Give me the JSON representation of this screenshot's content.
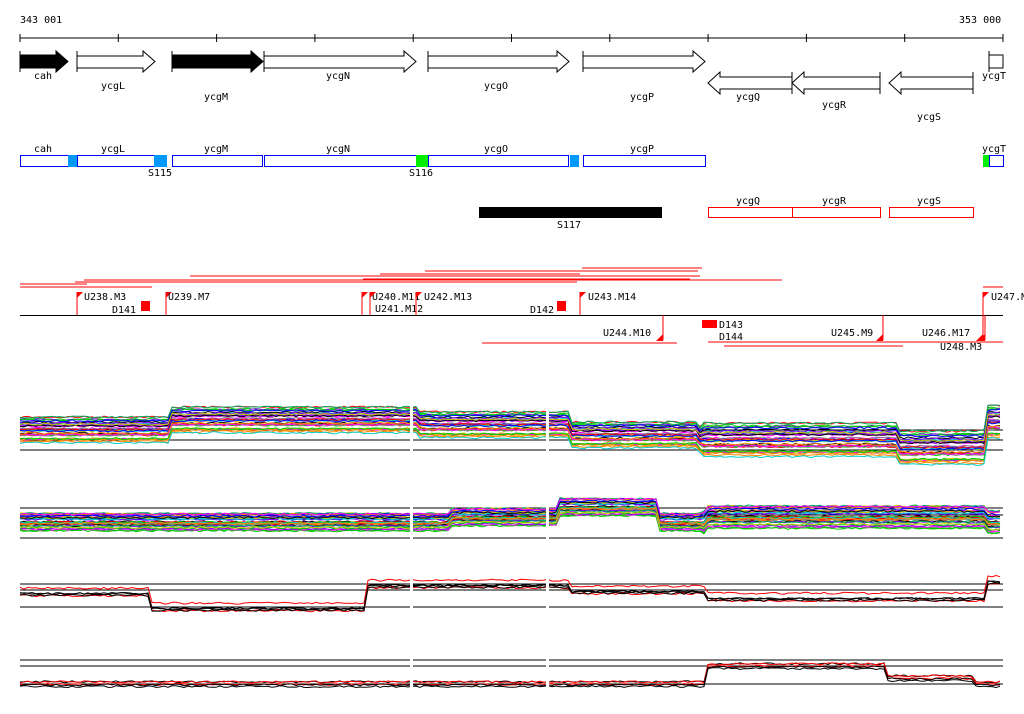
{
  "ruler": {
    "start": "343 001",
    "end": "353 000"
  },
  "genes": [
    {
      "name": "cah",
      "strand": "+",
      "filled": true
    },
    {
      "name": "ycgL",
      "strand": "+",
      "filled": false
    },
    {
      "name": "ycgM",
      "strand": "+",
      "filled": true
    },
    {
      "name": "ycgN",
      "strand": "+",
      "filled": false
    },
    {
      "name": "ycgO",
      "strand": "+",
      "filled": false
    },
    {
      "name": "ycgP",
      "strand": "+",
      "filled": false
    },
    {
      "name": "ycgQ",
      "strand": "-",
      "filled": false
    },
    {
      "name": "ycgR",
      "strand": "-",
      "filled": false
    },
    {
      "name": "ycgS",
      "strand": "-",
      "filled": false
    },
    {
      "name": "ycgT",
      "strand": "+",
      "filled": false
    }
  ],
  "operon_track": {
    "boxes": [
      "cah",
      "ycgL",
      "ycgM",
      "ycgN",
      "ycgO",
      "ycgP",
      "ycgT"
    ],
    "sites": [
      "S115",
      "S116"
    ]
  },
  "segment_track": {
    "block": "S117",
    "boxes": [
      "ycgQ",
      "ycgR",
      "ycgS"
    ]
  },
  "feature_labels": {
    "top": [
      "U238.M3",
      "D141",
      "U239.M7",
      "U240.M11",
      "U241.M12",
      "U242.M13",
      "D142",
      "U243.M14",
      "U247.M"
    ],
    "bottom": [
      "U244.M10",
      "D143",
      "D144",
      "U245.M9",
      "U246.M17",
      "U248.M3"
    ]
  },
  "colors": {
    "blue": "#0000ff",
    "site_blue": "#0099ff",
    "site_green": "#00ee00",
    "red": "#ff0000"
  }
}
